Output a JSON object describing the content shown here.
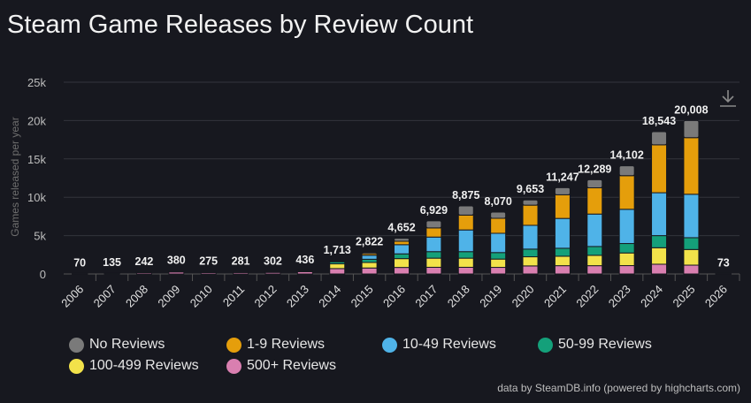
{
  "chart_data": {
    "type": "bar",
    "stacked": true,
    "title": "Steam Game Releases by Review Count",
    "ylabel": "Games released per year",
    "xlabel": "",
    "ylim": [
      0,
      25000
    ],
    "yticks": [
      "0",
      "5k",
      "10k",
      "15k",
      "20k",
      "25k"
    ],
    "grid": true,
    "legend": "bottom",
    "categories": [
      "2006",
      "2007",
      "2008",
      "2009",
      "2010",
      "2011",
      "2012",
      "2013",
      "2014",
      "2015",
      "2016",
      "2017",
      "2018",
      "2019",
      "2020",
      "2021",
      "2022",
      "2023",
      "2024",
      "2025",
      "2026"
    ],
    "totals": [
      "70",
      "135",
      "242",
      "380",
      "275",
      "281",
      "302",
      "436",
      "1,713",
      "2,822",
      "4,652",
      "6,929",
      "8,875",
      "8,070",
      "9,653",
      "11,247",
      "12,289",
      "14,102",
      "18,543",
      "20,008",
      "73"
    ],
    "series": [
      {
        "name": "500+ Reviews",
        "color": "#d97fb0",
        "values": [
          55,
          100,
          180,
          260,
          190,
          200,
          210,
          300,
          700,
          780,
          850,
          870,
          870,
          860,
          1050,
          1080,
          1080,
          1090,
          1270,
          1150,
          5
        ]
      },
      {
        "name": "100-499 Reviews",
        "color": "#f2e24a",
        "values": [
          10,
          25,
          40,
          80,
          55,
          55,
          60,
          90,
          620,
          720,
          1150,
          1190,
          1190,
          1080,
          1190,
          1230,
          1350,
          1650,
          2150,
          2040,
          5
        ]
      },
      {
        "name": "50-99 Reviews",
        "color": "#14a07a",
        "values": [
          3,
          5,
          10,
          20,
          15,
          12,
          15,
          25,
          270,
          420,
          620,
          850,
          850,
          850,
          1000,
          1040,
          1150,
          1230,
          1580,
          1540,
          5
        ]
      },
      {
        "name": "10-49 Reviews",
        "color": "#4fb3e8",
        "values": [
          2,
          3,
          7,
          15,
          10,
          8,
          10,
          15,
          100,
          520,
          1200,
          1900,
          2830,
          2510,
          3100,
          3890,
          4230,
          4460,
          5590,
          5660,
          10
        ]
      },
      {
        "name": "1-9 Reviews",
        "color": "#e59e0b",
        "values": [
          0,
          1,
          3,
          3,
          3,
          3,
          4,
          4,
          15,
          230,
          440,
          1190,
          1930,
          1960,
          2630,
          3090,
          3420,
          4380,
          6250,
          7380,
          20
        ]
      },
      {
        "name": "No Reviews",
        "color": "#7a7a7a",
        "values": [
          0,
          1,
          2,
          2,
          2,
          3,
          3,
          2,
          8,
          152,
          392,
          929,
          1205,
          810,
          683,
          917,
          1059,
          1292,
          1703,
          2238,
          28
        ]
      }
    ]
  },
  "legend_order": [
    5,
    4,
    3,
    2,
    1,
    0
  ],
  "credit": "data by SteamDB.info (powered by highcharts.com)",
  "download_icon": "download-icon"
}
